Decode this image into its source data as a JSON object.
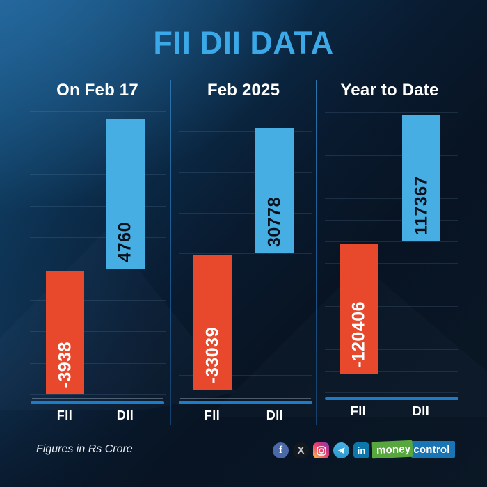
{
  "title": "FII DII DATA",
  "note": "Figures in Rs Crore",
  "logo": {
    "money": "money",
    "control": "control"
  },
  "social_icons": [
    {
      "name": "facebook-icon",
      "glyph": "f"
    },
    {
      "name": "x-icon",
      "glyph": "X"
    },
    {
      "name": "instagram-icon",
      "glyph": ""
    },
    {
      "name": "telegram-icon",
      "glyph": ""
    },
    {
      "name": "linkedin-icon",
      "glyph": "in"
    }
  ],
  "colors": {
    "title_text": "#3ba8e7",
    "fii_bar": "#e8492c",
    "dii_bar": "#47aee4",
    "baseline": "#1e7bc8",
    "background_light": "#155381",
    "background_dark": "#081423",
    "logo_green": "#57a73e",
    "logo_blue": "#1a75b5"
  },
  "chart_data": [
    {
      "type": "bar",
      "title": "On Feb 17",
      "categories": [
        "FII",
        "DII"
      ],
      "values": [
        -3938,
        4760
      ],
      "series_colors": [
        "#e8492c",
        "#47aee4"
      ],
      "unit": "Rs Crore",
      "grid_step": 1000,
      "grid": true,
      "value_label_rotation": "vertical",
      "layout": "waterfall-offset, FII below DII"
    },
    {
      "type": "bar",
      "title": "Feb 2025",
      "categories": [
        "FII",
        "DII"
      ],
      "values": [
        -33039,
        30778
      ],
      "series_colors": [
        "#e8492c",
        "#47aee4"
      ],
      "unit": "Rs Crore",
      "grid_step": 10000,
      "grid": true,
      "value_label_rotation": "vertical",
      "layout": "waterfall-offset, FII below DII"
    },
    {
      "type": "bar",
      "title": "Year to Date",
      "categories": [
        "FII",
        "DII"
      ],
      "values": [
        -120406,
        117367
      ],
      "series_colors": [
        "#e8492c",
        "#47aee4"
      ],
      "unit": "Rs Crore",
      "grid_step": 20000,
      "grid": true,
      "value_label_rotation": "vertical",
      "layout": "waterfall-offset, FII below DII"
    }
  ]
}
